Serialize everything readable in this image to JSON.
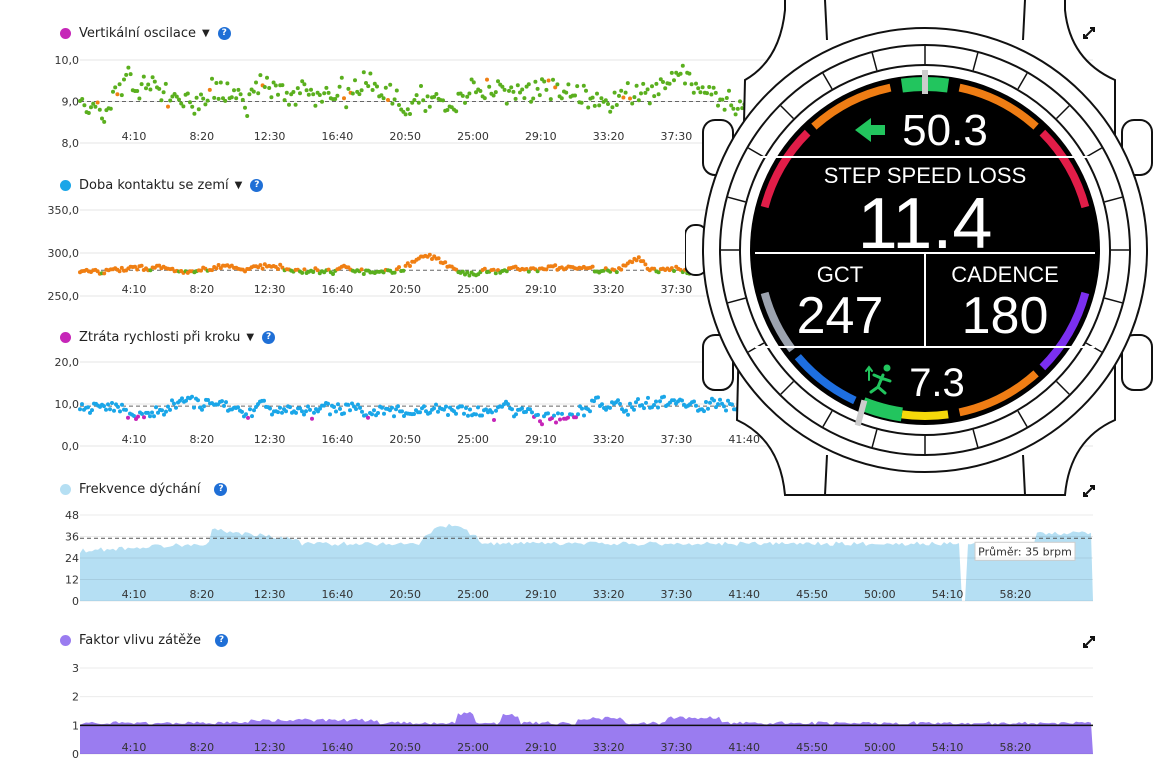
{
  "panels": {
    "vo": {
      "title": "Vertikální oscilace",
      "dot_color": "#c626b8",
      "has_caret": true,
      "help": "?"
    },
    "gct": {
      "title": "Doba kontaktu se zemí",
      "dot_color": "#1aa6e8",
      "has_caret": true,
      "help": "?"
    },
    "ssl": {
      "title": "Ztráta rychlosti při kroku",
      "dot_color": "#c626b8",
      "has_caret": true,
      "help": "?"
    },
    "resp": {
      "title": "Frekvence dýchání",
      "dot_color": "#b5dff3",
      "has_caret": false,
      "help": "?"
    },
    "load": {
      "title": "Faktor vlivu zátěže",
      "dot_color": "#9a7cf0",
      "has_caret": false,
      "help": "?"
    }
  },
  "icons": {
    "expand": "expand-arrows-icon",
    "help": "help-circle-icon",
    "arrow": "left-arrow-icon",
    "runner": "runner-icon"
  },
  "chart_data": [
    {
      "id": "vo",
      "type": "scatter",
      "title": "Vertikální oscilace",
      "y_ticks": [
        "8,0",
        "9,0",
        "10,0"
      ],
      "ylim": [
        8,
        10
      ],
      "average": 9.0,
      "x_ticks": [
        "4:10",
        "8:20",
        "12:30",
        "16:40",
        "20:50",
        "25:00",
        "29:10",
        "33:20",
        "37:30"
      ],
      "series": [
        {
          "color": "#5aaf1e"
        },
        {
          "color": "#f07f13"
        },
        {
          "color": "#1aa6e8"
        }
      ]
    },
    {
      "id": "gct",
      "type": "scatter",
      "title": "Doba kontaktu se zemí",
      "y_ticks": [
        "250,0",
        "300,0",
        "350,0"
      ],
      "ylim": [
        250,
        350
      ],
      "average": 280,
      "x_ticks": [
        "4:10",
        "8:20",
        "12:30",
        "16:40",
        "20:50",
        "25:00",
        "29:10",
        "33:20",
        "37:30"
      ],
      "series": [
        {
          "color": "#f07f13"
        },
        {
          "color": "#5aaf1e"
        }
      ]
    },
    {
      "id": "ssl",
      "type": "scatter",
      "title": "Ztráta rychlosti při kroku",
      "y_ticks": [
        "0,0",
        "10,0",
        "20,0"
      ],
      "ylim": [
        0,
        20
      ],
      "average": 9.5,
      "x_ticks": [
        "4:10",
        "8:20",
        "12:30",
        "16:40",
        "20:50",
        "25:00",
        "29:10",
        "33:20",
        "37:30",
        "41:40"
      ],
      "series": [
        {
          "color": "#c626b8"
        },
        {
          "color": "#1aa6e8"
        },
        {
          "color": "#5aaf1e"
        }
      ]
    },
    {
      "id": "resp",
      "type": "area",
      "title": "Frekvence dýchání",
      "y_ticks": [
        "0",
        "12",
        "24",
        "36",
        "48"
      ],
      "ylim": [
        0,
        48
      ],
      "average": 35,
      "average_label": "Průměr: 35 brpm",
      "color": "#b5dff3",
      "x_ticks": [
        "4:10",
        "8:20",
        "12:30",
        "16:40",
        "20:50",
        "25:00",
        "29:10",
        "33:20",
        "37:30",
        "41:40",
        "45:50",
        "50:00",
        "54:10",
        "58:20"
      ]
    },
    {
      "id": "load",
      "type": "area",
      "title": "Faktor vlivu zátěže",
      "y_ticks": [
        "0",
        "1",
        "2",
        "3"
      ],
      "ylim": [
        0,
        3
      ],
      "color": "#9a7cf0",
      "x_ticks": [
        "4:10",
        "8:20",
        "12:30",
        "16:40",
        "20:50",
        "25:00",
        "29:10",
        "33:20",
        "37:30",
        "41:40",
        "45:50",
        "50:00",
        "54:10",
        "58:20"
      ]
    }
  ],
  "watch": {
    "top_value": "50.3",
    "label": "STEP SPEED LOSS",
    "main_value": "11.4",
    "gct_label": "GCT",
    "gct_value": "247",
    "cadence_label": "CADENCE",
    "cadence_value": "180",
    "bottom_value": "7.3",
    "colors": {
      "green": "#22c55e",
      "orange": "#ef7d14",
      "red": "#e11d48",
      "blue": "#1e6fe0",
      "yellow": "#f5d90a",
      "purple": "#7b2ff0",
      "gray": "#9ca3af"
    }
  }
}
